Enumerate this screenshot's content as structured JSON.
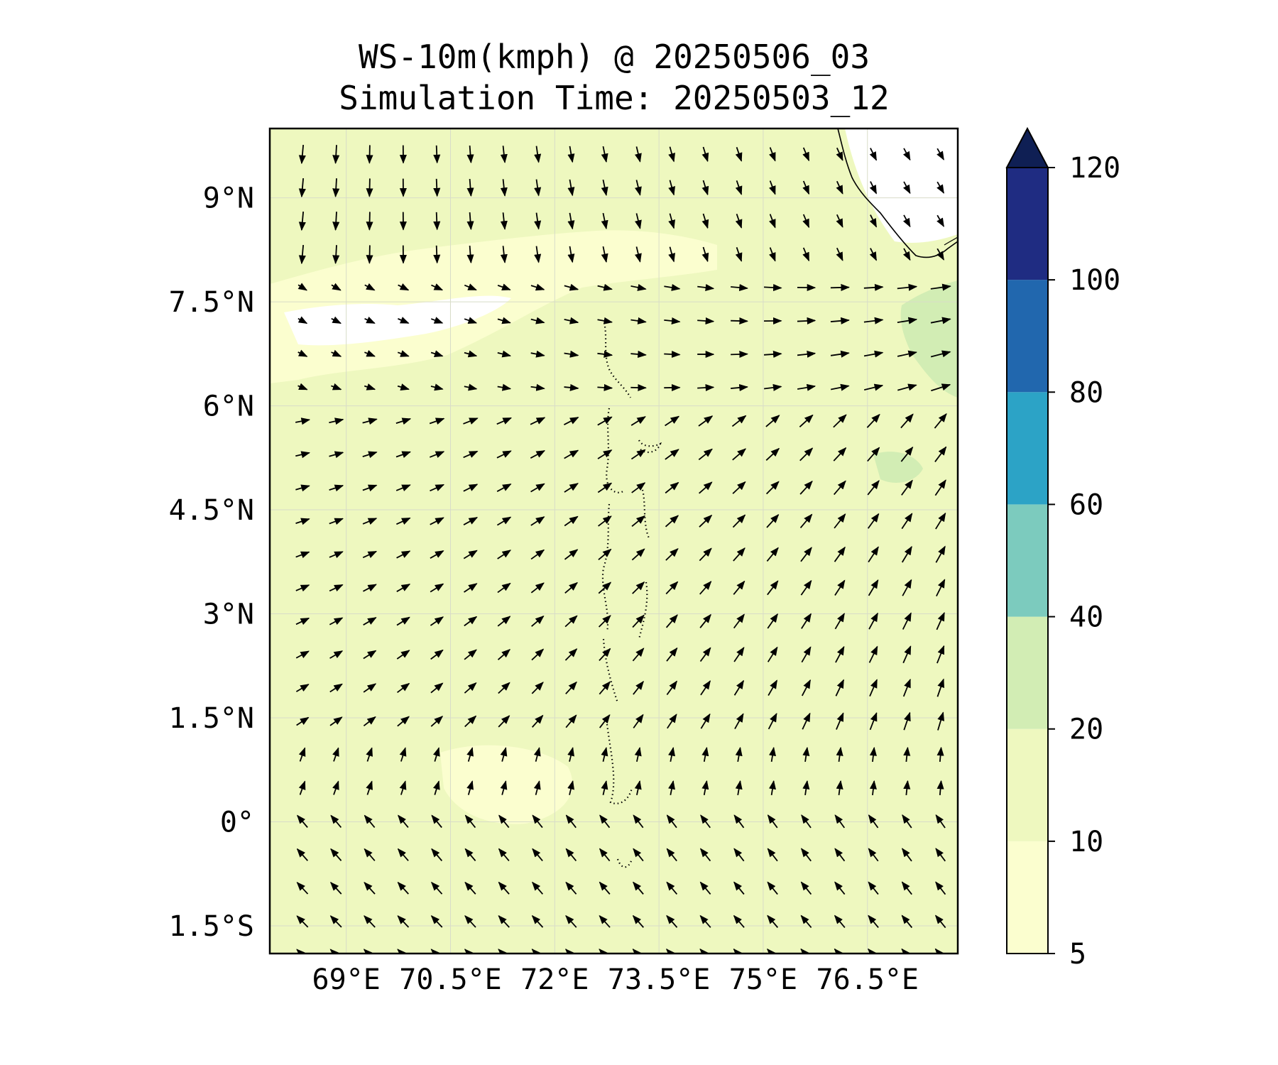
{
  "title": {
    "line1": "WS-10m(kmph) @ 20250506_03",
    "line2": "Simulation Time: 20250503_12"
  },
  "map": {
    "lat_range": [
      -1.9,
      10.0
    ],
    "lon_range": [
      67.9,
      77.8
    ],
    "lat_ticks": [
      {
        "value": 9.0,
        "label": "9°N"
      },
      {
        "value": 7.5,
        "label": "7.5°N"
      },
      {
        "value": 6.0,
        "label": "6°N"
      },
      {
        "value": 4.5,
        "label": "4.5°N"
      },
      {
        "value": 3.0,
        "label": "3°N"
      },
      {
        "value": 1.5,
        "label": "1.5°N"
      },
      {
        "value": 0.0,
        "label": "0°"
      },
      {
        "value": -1.5,
        "label": "1.5°S"
      }
    ],
    "lon_ticks": [
      {
        "value": 69.0,
        "label": "69°E"
      },
      {
        "value": 70.5,
        "label": "70.5°E"
      },
      {
        "value": 72.0,
        "label": "72°E"
      },
      {
        "value": 73.5,
        "label": "73.5°E"
      },
      {
        "value": 75.0,
        "label": "75°E"
      },
      {
        "value": 76.5,
        "label": "76.5°E"
      }
    ],
    "background_color": "#eef8bf"
  },
  "colorbar": {
    "levels": [
      {
        "from": 5,
        "to": 10,
        "color": "#fbfecf"
      },
      {
        "from": 10,
        "to": 20,
        "color": "#eef8bf"
      },
      {
        "from": 20,
        "to": 40,
        "color": "#d2edb4"
      },
      {
        "from": 40,
        "to": 60,
        "color": "#7ccbbe"
      },
      {
        "from": 60,
        "to": 80,
        "color": "#2ca3c6"
      },
      {
        "from": 80,
        "to": 100,
        "color": "#2167ae"
      },
      {
        "from": 100,
        "to": 120,
        "color": "#1f2c82"
      }
    ],
    "extend_color": "#0f1f54",
    "tick_labels": [
      "5",
      "10",
      "20",
      "40",
      "60",
      "80",
      "100",
      "120"
    ]
  }
}
